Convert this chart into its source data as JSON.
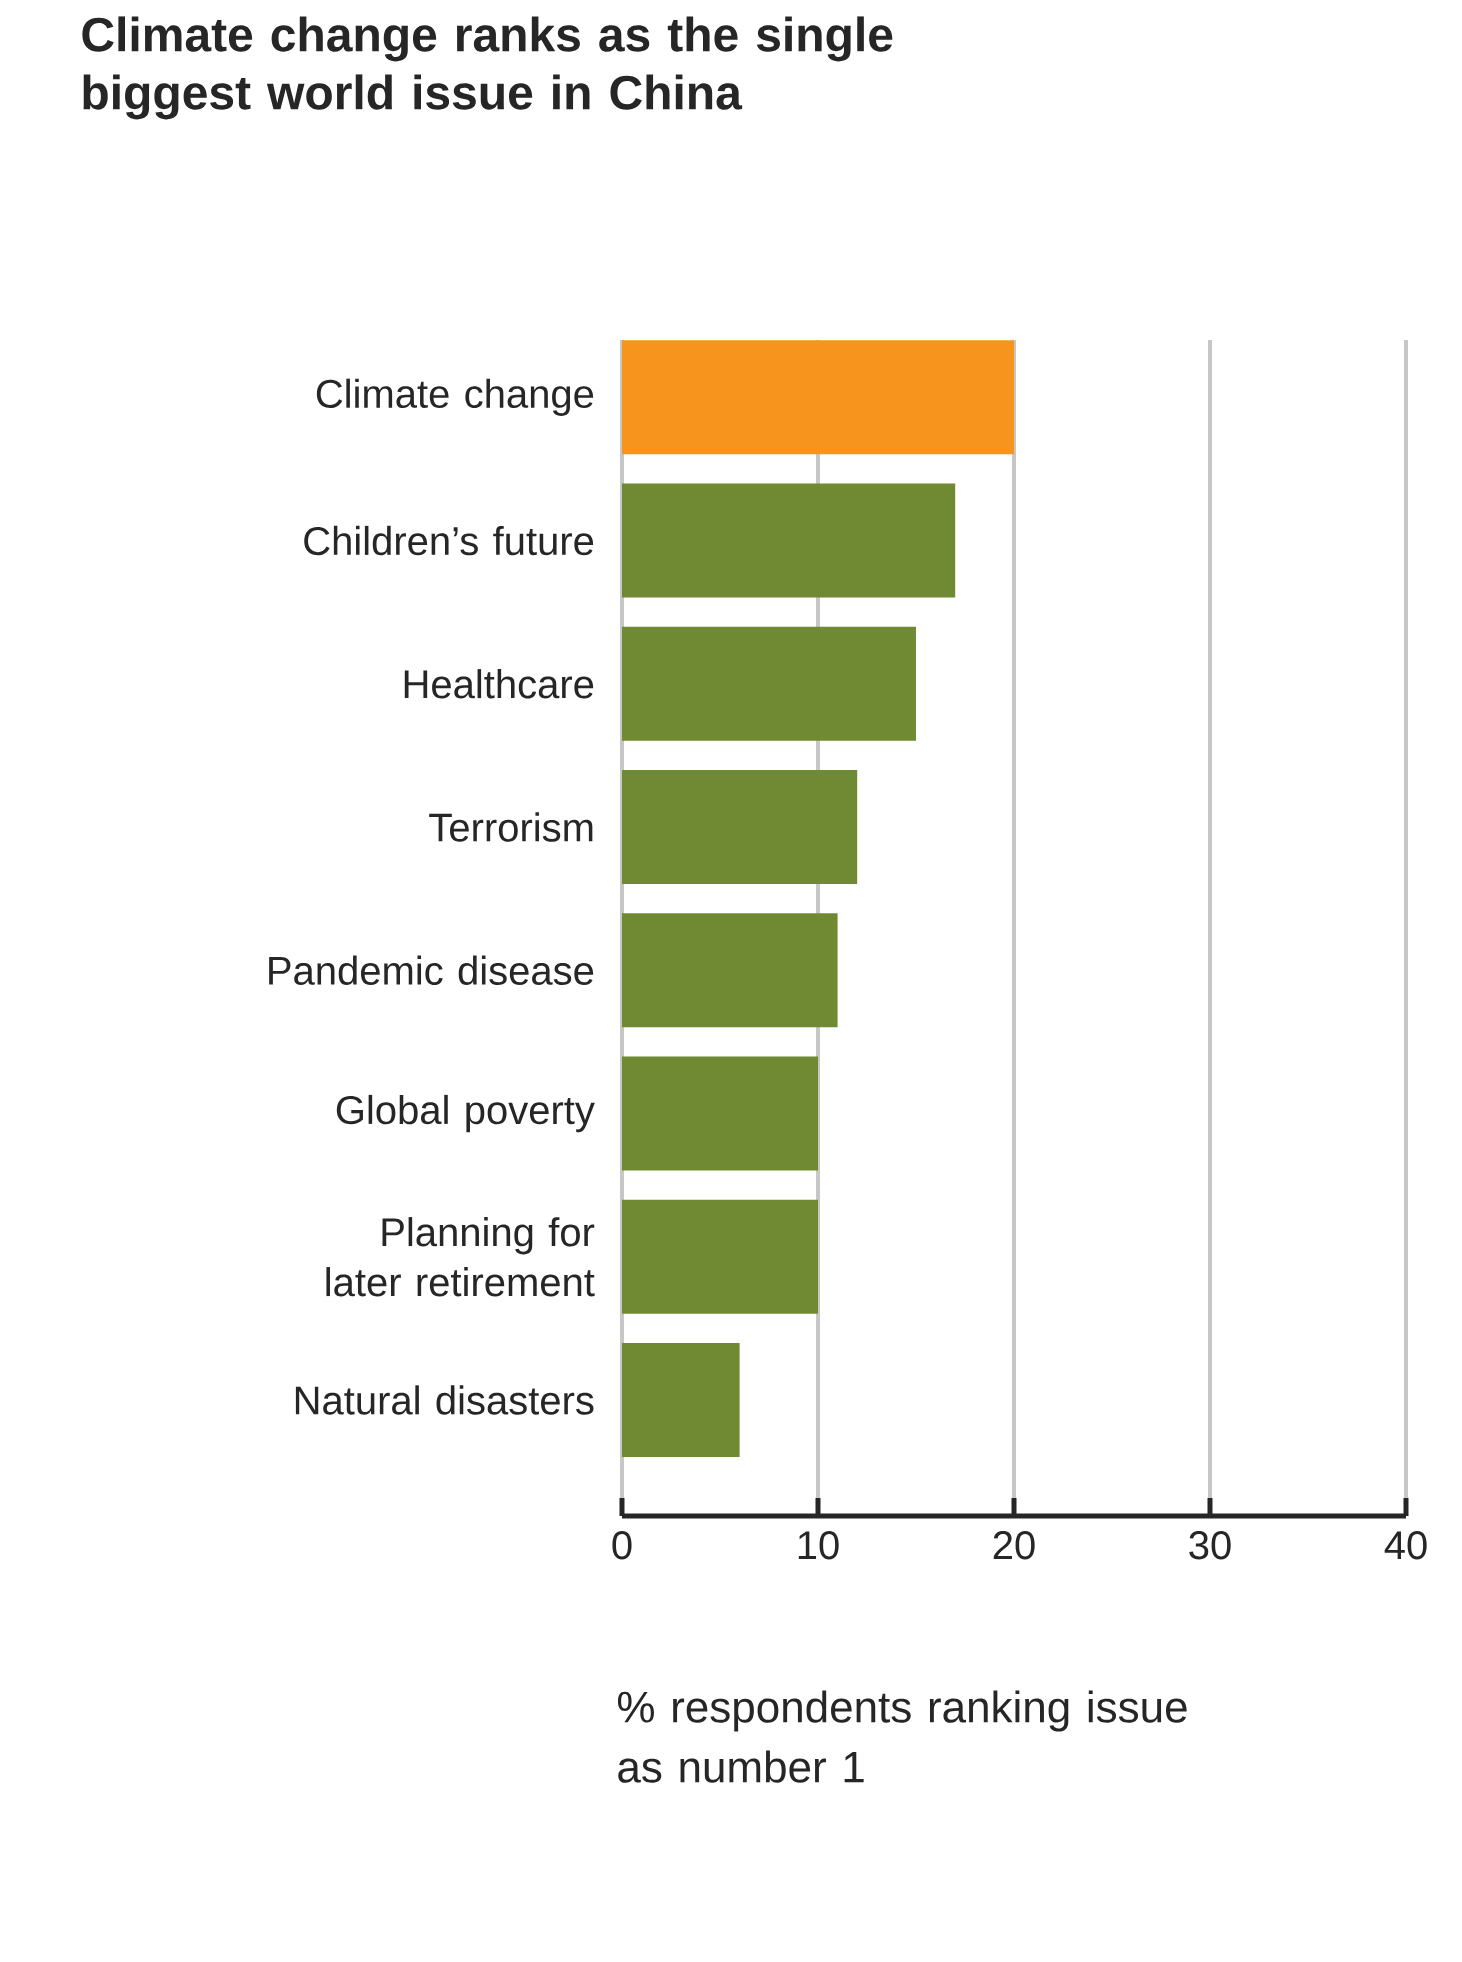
{
  "chart_data": {
    "type": "bar",
    "orientation": "horizontal",
    "title": "Climate change ranks as the single biggest world issue in China",
    "xlabel": "% respondents ranking issue as number 1",
    "categories": [
      "Climate change",
      "Children’s future",
      "Healthcare",
      "Terrorism",
      "Pandemic disease",
      "Global poverty",
      "Planning for later retirement",
      "Natural disasters"
    ],
    "values": [
      20,
      17,
      15,
      12,
      11,
      10,
      10,
      6
    ],
    "colors": [
      "#f7941d",
      "#6f8a33",
      "#6f8a33",
      "#6f8a33",
      "#6f8a33",
      "#6f8a33",
      "#6f8a33",
      "#6f8a33"
    ],
    "xlim": [
      0,
      40
    ],
    "xticks": [
      0,
      10,
      20,
      30,
      40
    ],
    "grid": "x"
  }
}
